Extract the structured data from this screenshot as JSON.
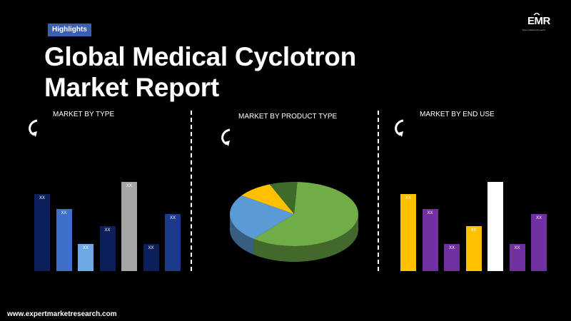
{
  "badge": "Highlights",
  "title_line1": "Global Medical Cyclotron",
  "title_line2": "Market Report",
  "logo": {
    "text": "EMR",
    "tagline": "Expert Market Research"
  },
  "footer": "www.expertmarketresearch.com",
  "charts": [
    {
      "title": "MARKET BY TYPE",
      "chart_data": {
        "type": "bar",
        "categories": [
          "",
          "",
          "",
          "",
          "",
          "",
          ""
        ],
        "values": [
          108,
          87,
          38,
          63,
          125,
          38,
          80
        ],
        "data_labels": [
          "XX",
          "XX",
          "XX",
          "XX",
          "XX",
          "XX",
          "XX"
        ],
        "colors": [
          "#0d1f5a",
          "#3f6fc6",
          "#6fa8e6",
          "#0d1f5a",
          "#a6a6a6",
          "#0d1f5a",
          "#1b3a8a"
        ]
      }
    },
    {
      "title": "MARKET BY  PRODUCT TYPE",
      "chart_data": {
        "type": "pie",
        "values": [
          60,
          24,
          9,
          7
        ],
        "colors": [
          "#70ad47",
          "#5b9bd5",
          "#ffc000",
          "#3f6b2a"
        ]
      }
    },
    {
      "title": "MARKET BY END USE",
      "chart_data": {
        "type": "bar",
        "categories": [
          "",
          "",
          "",
          "",
          "",
          "",
          ""
        ],
        "values": [
          108,
          87,
          38,
          63,
          125,
          38,
          80
        ],
        "data_labels": [
          "XX",
          "XX",
          "XX",
          "XX",
          "XX",
          "XX",
          "XX"
        ],
        "colors": [
          "#ffc000",
          "#7030a0",
          "#7030a0",
          "#ffc000",
          "#ffffff",
          "#7030a0",
          "#7030a0"
        ]
      }
    }
  ]
}
